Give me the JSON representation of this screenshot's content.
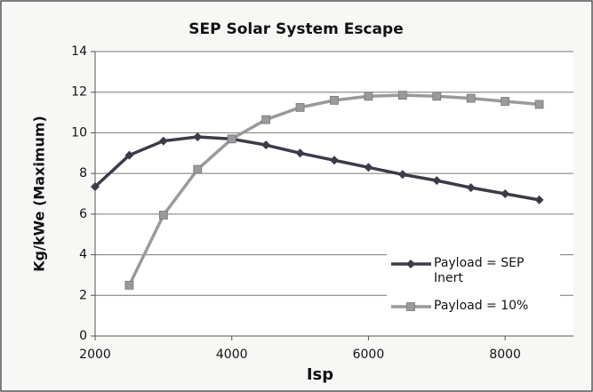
{
  "chart_data": {
    "type": "line",
    "title": "SEP Solar System Escape",
    "x_label": "Isp",
    "y_label": "Kg/kWe (Maximum)",
    "series": [
      {
        "name": "Payload = SEP Inert",
        "color": "#3b3b4a",
        "marker": "diamond",
        "x": [
          2000,
          2500,
          3000,
          3500,
          4000,
          4500,
          5000,
          5500,
          6000,
          6500,
          7000,
          7500,
          8000,
          8500
        ],
        "values": [
          7.35,
          8.9,
          9.6,
          9.8,
          9.7,
          9.4,
          9.0,
          8.65,
          8.3,
          7.95,
          7.65,
          7.3,
          7.0,
          6.7
        ]
      },
      {
        "name": "Payload = 10%",
        "color": "#9a9a9a",
        "marker": "square",
        "x": [
          2500,
          3000,
          3500,
          4000,
          4500,
          5000,
          5500,
          6000,
          6500,
          7000,
          7500,
          8000,
          8500
        ],
        "values": [
          2.5,
          5.95,
          8.2,
          9.7,
          10.65,
          11.25,
          11.6,
          11.8,
          11.85,
          11.8,
          11.7,
          11.55,
          11.4
        ]
      }
    ],
    "xlim": [
      2000,
      9000
    ],
    "xticks": [
      2000,
      4000,
      6000,
      8000
    ],
    "ylim": [
      0,
      14
    ],
    "yticks": [
      0,
      2,
      4,
      6,
      8,
      10,
      12,
      14
    ],
    "grid": true,
    "legend": "lower right"
  }
}
